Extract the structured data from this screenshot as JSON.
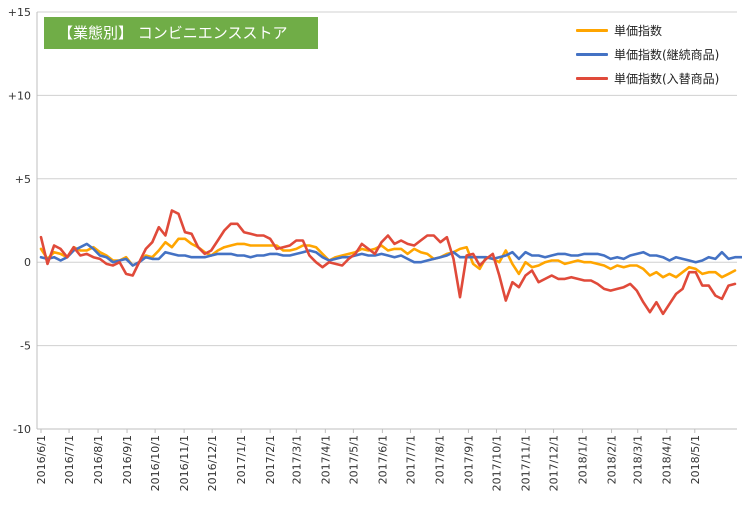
{
  "chart_data": {
    "type": "line",
    "title": "【業態別】 コンビニエンスストア",
    "xlabel": "",
    "ylabel": "",
    "ylim": [
      -10,
      15
    ],
    "yticks": [
      -10,
      -5,
      0,
      5,
      10,
      15
    ],
    "ytick_labels": [
      "-10",
      "-5",
      "0",
      "+5",
      "+10",
      "+15"
    ],
    "x_start": "2016-06-01",
    "x_step_days": 7,
    "xticks": [
      {
        "date": "2016-06-01",
        "label": "2016/6/1"
      },
      {
        "date": "2016-07-01",
        "label": "2016/7/1"
      },
      {
        "date": "2016-08-01",
        "label": "2016/8/1"
      },
      {
        "date": "2016-09-01",
        "label": "2016/9/1"
      },
      {
        "date": "2016-10-01",
        "label": "2016/10/1"
      },
      {
        "date": "2016-11-01",
        "label": "2016/11/1"
      },
      {
        "date": "2016-12-01",
        "label": "2016/12/1"
      },
      {
        "date": "2017-01-01",
        "label": "2017/1/1"
      },
      {
        "date": "2017-02-01",
        "label": "2017/2/1"
      },
      {
        "date": "2017-03-01",
        "label": "2017/3/1"
      },
      {
        "date": "2017-04-01",
        "label": "2017/4/1"
      },
      {
        "date": "2017-05-01",
        "label": "2017/5/1"
      },
      {
        "date": "2017-06-01",
        "label": "2017/6/1"
      },
      {
        "date": "2017-07-01",
        "label": "2017/7/1"
      },
      {
        "date": "2017-08-01",
        "label": "2017/8/1"
      },
      {
        "date": "2017-09-01",
        "label": "2017/9/1"
      },
      {
        "date": "2017-10-01",
        "label": "2017/10/1"
      },
      {
        "date": "2017-11-01",
        "label": "2017/11/1"
      },
      {
        "date": "2017-12-01",
        "label": "2017/12/1"
      },
      {
        "date": "2018-01-01",
        "label": "2018/1/1"
      },
      {
        "date": "2018-02-01",
        "label": "2018/2/1"
      },
      {
        "date": "2018-03-01",
        "label": "2018/3/1"
      },
      {
        "date": "2018-04-01",
        "label": "2018/4/1"
      },
      {
        "date": "2018-05-01",
        "label": "2018/5/1"
      }
    ],
    "grid": {
      "horizontal": true,
      "vertical": false
    },
    "legend_position": "top-right",
    "series": [
      {
        "name": "単価指数",
        "color": "#ffa500",
        "values": [
          0.8,
          0.2,
          0.6,
          0.5,
          0.3,
          0.9,
          0.7,
          0.7,
          0.9,
          0.6,
          0.4,
          0.1,
          0.1,
          0.3,
          -0.2,
          0.0,
          0.4,
          0.3,
          0.7,
          1.2,
          0.9,
          1.4,
          1.4,
          1.1,
          0.9,
          0.6,
          0.4,
          0.7,
          0.9,
          1.0,
          1.1,
          1.1,
          1.0,
          1.0,
          1.0,
          1.0,
          1.0,
          0.7,
          0.7,
          0.8,
          1.0,
          1.0,
          0.9,
          0.5,
          0.1,
          0.3,
          0.4,
          0.5,
          0.6,
          0.8,
          0.7,
          0.8,
          1.0,
          0.7,
          0.8,
          0.8,
          0.5,
          0.8,
          0.6,
          0.5,
          0.2,
          0.3,
          0.5,
          0.6,
          0.8,
          0.9,
          -0.1,
          -0.4,
          0.3,
          0.2,
          0.0,
          0.7,
          -0.1,
          -0.7,
          0.0,
          -0.3,
          -0.2,
          0.0,
          0.1,
          0.1,
          -0.1,
          0.0,
          0.1,
          0.0,
          0.0,
          -0.1,
          -0.2,
          -0.4,
          -0.2,
          -0.3,
          -0.2,
          -0.2,
          -0.4,
          -0.8,
          -0.6,
          -0.9,
          -0.7,
          -0.9,
          -0.6,
          -0.3,
          -0.4,
          -0.7,
          -0.6,
          -0.6,
          -0.9,
          -0.7,
          -0.5
        ],
        "label": "単価指数"
      },
      {
        "name": "単価指数(継続商品)",
        "color": "#4472c4",
        "values": [
          0.3,
          0.2,
          0.3,
          0.1,
          0.3,
          0.7,
          0.9,
          1.1,
          0.8,
          0.4,
          0.3,
          0.0,
          0.1,
          0.2,
          -0.2,
          0.0,
          0.3,
          0.2,
          0.2,
          0.6,
          0.5,
          0.4,
          0.4,
          0.3,
          0.3,
          0.3,
          0.4,
          0.5,
          0.5,
          0.5,
          0.4,
          0.4,
          0.3,
          0.4,
          0.4,
          0.5,
          0.5,
          0.4,
          0.4,
          0.5,
          0.6,
          0.7,
          0.6,
          0.3,
          0.1,
          0.2,
          0.3,
          0.3,
          0.4,
          0.5,
          0.4,
          0.4,
          0.5,
          0.4,
          0.3,
          0.4,
          0.2,
          0.0,
          0.0,
          0.1,
          0.2,
          0.3,
          0.4,
          0.6,
          0.3,
          0.3,
          0.3,
          0.3,
          0.3,
          0.2,
          0.3,
          0.4,
          0.6,
          0.2,
          0.6,
          0.4,
          0.4,
          0.3,
          0.4,
          0.5,
          0.5,
          0.4,
          0.4,
          0.5,
          0.5,
          0.5,
          0.4,
          0.2,
          0.3,
          0.2,
          0.4,
          0.5,
          0.6,
          0.4,
          0.4,
          0.3,
          0.1,
          0.3,
          0.2,
          0.1,
          0.0,
          0.1,
          0.3,
          0.2,
          0.6,
          0.2,
          0.3,
          0.3
        ],
        "label": "単価指数(継続商品)"
      },
      {
        "name": "単価指数(入替商品)",
        "color": "#e04a3a",
        "values": [
          1.5,
          -0.1,
          1.0,
          0.8,
          0.3,
          0.9,
          0.4,
          0.5,
          0.3,
          0.2,
          -0.1,
          -0.2,
          0.0,
          -0.7,
          -0.8,
          0.0,
          0.8,
          1.2,
          2.1,
          1.6,
          3.1,
          2.9,
          1.8,
          1.7,
          0.9,
          0.5,
          0.7,
          1.3,
          1.9,
          2.3,
          2.3,
          1.8,
          1.7,
          1.6,
          1.6,
          1.4,
          0.8,
          0.9,
          1.0,
          1.3,
          1.3,
          0.4,
          0.0,
          -0.3,
          0.0,
          -0.1,
          -0.2,
          0.2,
          0.5,
          1.1,
          0.8,
          0.5,
          1.2,
          1.6,
          1.1,
          1.3,
          1.1,
          1.0,
          1.3,
          1.6,
          1.6,
          1.2,
          1.5,
          0.2,
          -2.1,
          0.4,
          0.5,
          -0.2,
          0.2,
          0.5,
          -0.8,
          -2.3,
          -1.2,
          -1.5,
          -0.8,
          -0.5,
          -1.2,
          -1.0,
          -0.8,
          -1.0,
          -1.0,
          -0.9,
          -1.0,
          -1.1,
          -1.1,
          -1.3,
          -1.6,
          -1.7,
          -1.6,
          -1.5,
          -1.3,
          -1.7,
          -2.4,
          -3.0,
          -2.4,
          -3.1,
          -2.5,
          -1.9,
          -1.6,
          -0.6,
          -0.6,
          -1.4,
          -1.4,
          -2.0,
          -2.2,
          -1.4,
          -1.3
        ],
        "label": "単価指数(入替商品)"
      }
    ]
  }
}
